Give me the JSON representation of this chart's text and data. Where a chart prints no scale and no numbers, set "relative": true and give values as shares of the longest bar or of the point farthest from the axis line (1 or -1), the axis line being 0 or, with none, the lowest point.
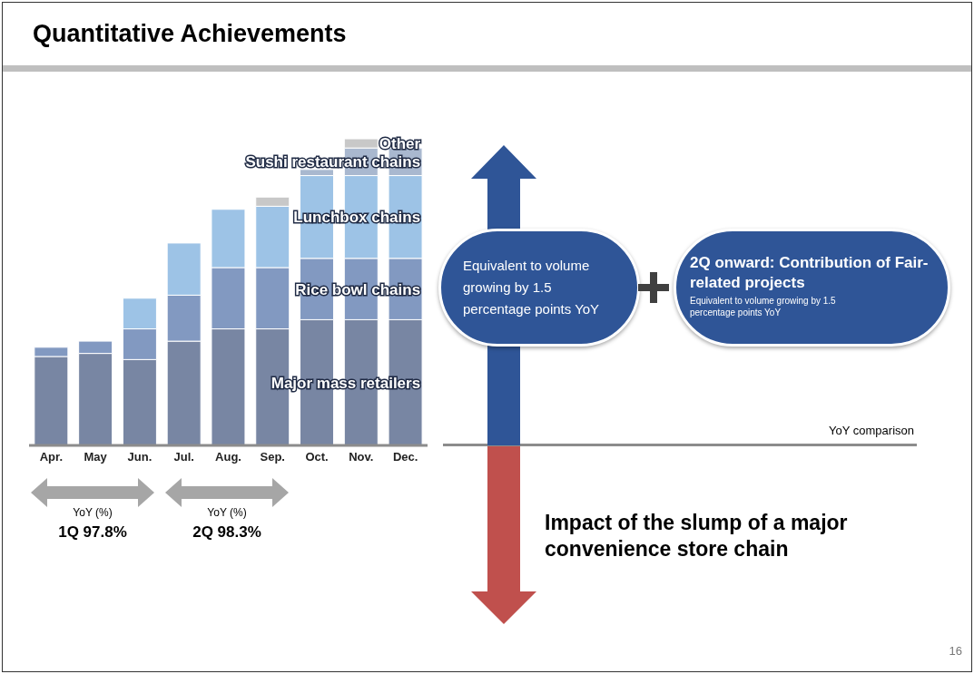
{
  "chart_data": {
    "type": "bar",
    "title": "Quantitative Achievements",
    "stacked": true,
    "relative": true,
    "categories": [
      "Apr.",
      "May",
      "Jun.",
      "Jul.",
      "Aug.",
      "Sep.",
      "Oct.",
      "Nov.",
      "Dec."
    ],
    "series": [
      {
        "name": "Major mass retailers",
        "color": "#7886a3",
        "values": [
          0.29,
          0.3,
          0.28,
          0.34,
          0.38,
          0.38,
          0.41,
          0.41,
          0.41
        ]
      },
      {
        "name": "Rice bowl chains",
        "color": "#8299c1",
        "values": [
          0.03,
          0.04,
          0.1,
          0.15,
          0.2,
          0.2,
          0.2,
          0.2,
          0.2
        ]
      },
      {
        "name": "Lunchbox chains",
        "color": "#9dc3e6",
        "values": [
          null,
          null,
          0.1,
          0.17,
          0.19,
          0.2,
          0.27,
          0.27,
          0.27
        ]
      },
      {
        "name": "Sushi restaurant chains",
        "color": "#a9b8cf",
        "values": [
          null,
          null,
          null,
          null,
          null,
          null,
          0.02,
          0.09,
          0.09
        ]
      },
      {
        "name": "Other",
        "color": "#c8c8c8",
        "values": [
          null,
          null,
          null,
          null,
          null,
          0.03,
          null,
          0.03,
          null
        ]
      }
    ],
    "annotations": [
      "YoY comparison",
      "Equivalent to volume growing by 1.5 percentage points YoY",
      "2Q onward: Contribution of Fair-related projects",
      "Equivalent to volume growing by 1.5 percentage points YoY",
      "Impact of the slump of a major convenience store chain",
      "YoY (%)",
      "1Q 97.8%",
      "YoY (%)",
      "2Q 98.3%",
      "16"
    ]
  }
}
